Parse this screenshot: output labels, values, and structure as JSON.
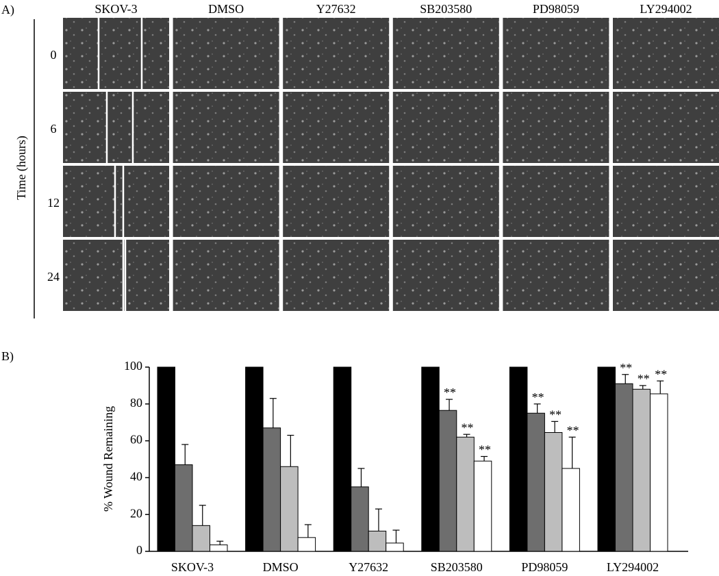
{
  "panel_a": {
    "label": "A)",
    "axis_label": "Time (hours)",
    "columns": [
      "SKOV-3",
      "DMSO",
      "Y27632",
      "SB203580",
      "PD98059",
      "LY294002"
    ],
    "rows": [
      "0",
      "6",
      "12",
      "24"
    ]
  },
  "chart_data": {
    "type": "bar",
    "label": "B)",
    "ylabel": "% Wound Remaining",
    "categories": [
      "SKOV-3",
      "DMSO",
      "Y27632",
      "SB203580",
      "PD98059",
      "LY294002"
    ],
    "series": [
      {
        "color": "#000000",
        "values": [
          100,
          100,
          100,
          100,
          100,
          100
        ]
      },
      {
        "color": "#6e6e6e",
        "values": [
          47,
          67,
          35,
          76.5,
          75,
          91
        ],
        "errors": [
          11,
          16,
          10,
          6,
          5,
          5
        ],
        "significance": [
          null,
          null,
          null,
          "**",
          "**",
          "**"
        ]
      },
      {
        "color": "#bdbdbd",
        "values": [
          14,
          46,
          11,
          62,
          64.5,
          88
        ],
        "errors": [
          11,
          17,
          12,
          1.5,
          6,
          2
        ],
        "significance": [
          null,
          null,
          null,
          "**",
          "**",
          "**"
        ]
      },
      {
        "color": "#ffffff",
        "values": [
          3.5,
          7.5,
          4.5,
          49,
          45,
          85.5
        ],
        "errors": [
          2,
          7,
          7,
          2.5,
          17,
          7
        ],
        "significance": [
          null,
          null,
          null,
          "**",
          "**",
          "**"
        ]
      }
    ],
    "ylim": [
      0,
      100
    ],
    "yticks": [
      0,
      20,
      40,
      60,
      80,
      100
    ]
  }
}
